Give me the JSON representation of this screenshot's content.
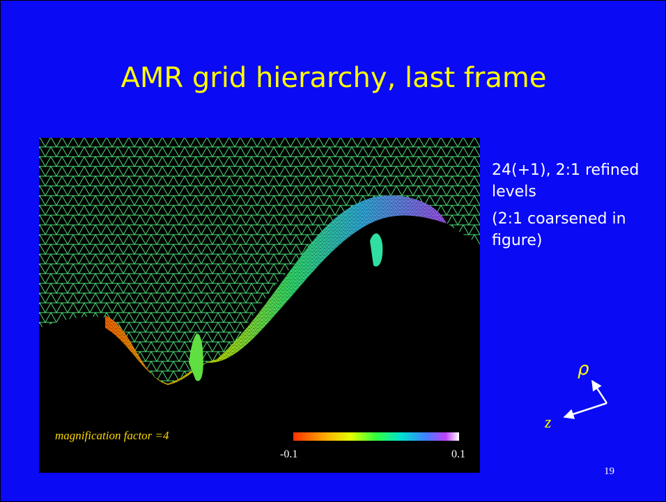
{
  "slide": {
    "title": "AMR grid hierarchy, last frame",
    "notes": [
      "24(+1), 2:1 refined levels",
      "(2:1 coarsened in figure)"
    ],
    "figure": {
      "caption": "magnification factor =4",
      "colorbar_min": "-0.1",
      "colorbar_max": "0.1"
    },
    "axes": {
      "rho": "ρ",
      "z": "z"
    },
    "page_number": "19"
  }
}
